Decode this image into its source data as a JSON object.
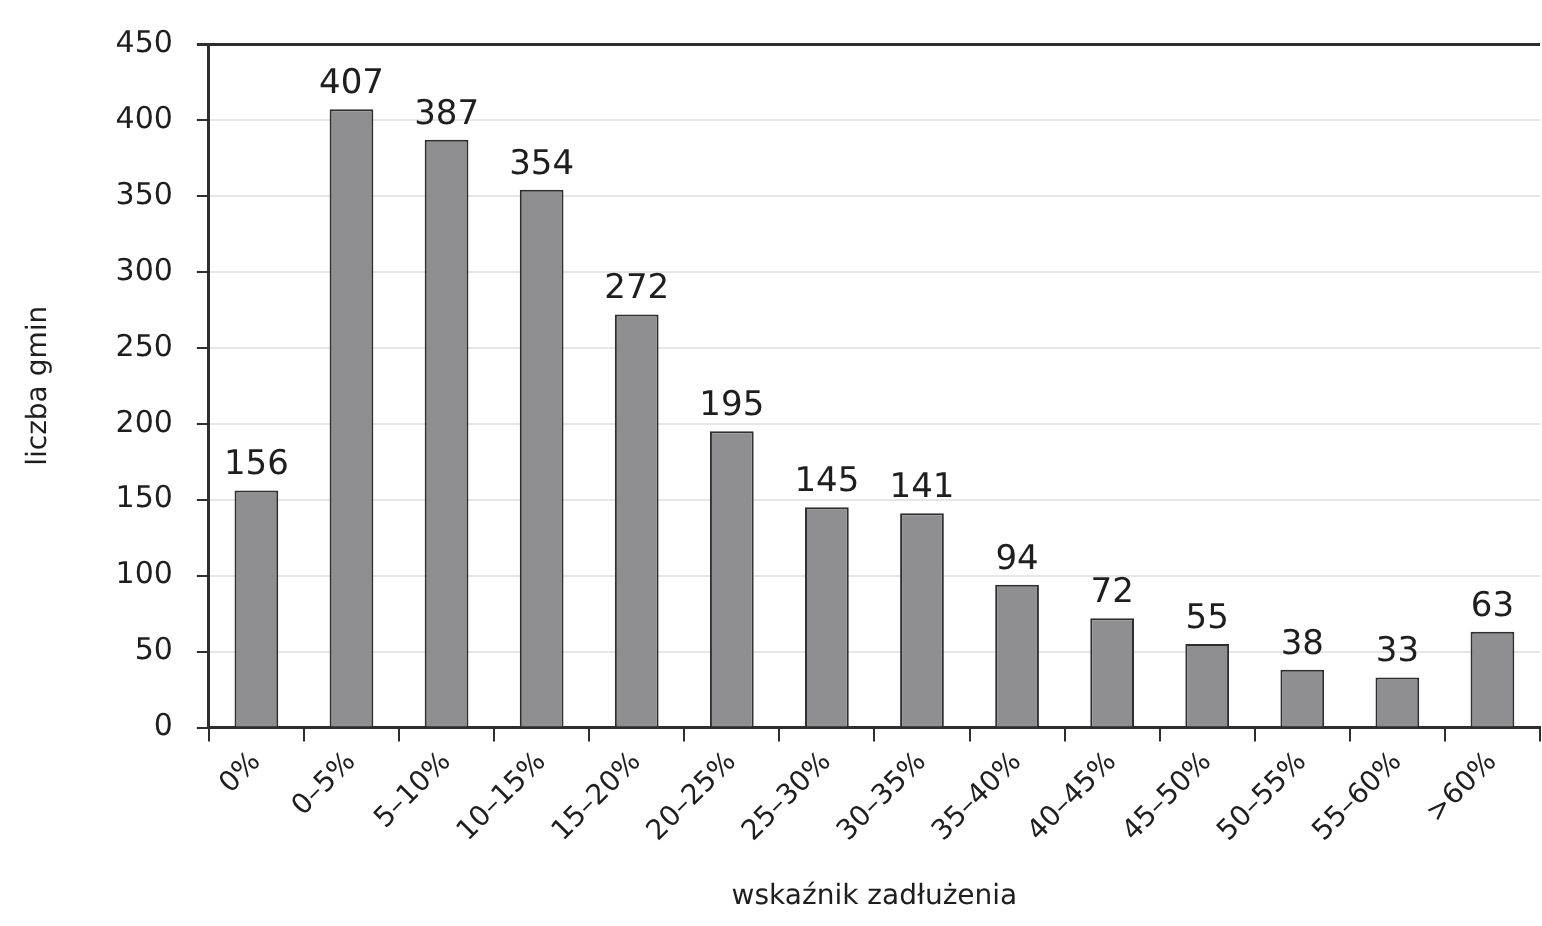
{
  "chart_data": {
    "type": "bar",
    "xlabel": "wskaźnik zadłużenia",
    "ylabel": "liczba gmin",
    "categories": [
      "0%",
      "0–5%",
      "5–10%",
      "10–15%",
      "15–20%",
      "20–25%",
      "25–30%",
      "30–35%",
      "35–40%",
      "40–45%",
      "45–50%",
      "50–55%",
      "55–60%",
      ">60%"
    ],
    "values": [
      156,
      407,
      387,
      354,
      272,
      195,
      145,
      141,
      94,
      72,
      55,
      38,
      33,
      63
    ],
    "color": "#8f8f91",
    "ylim": [
      0,
      450
    ],
    "yticks": [
      0,
      50,
      100,
      150,
      200,
      250,
      300,
      350,
      400,
      450
    ],
    "grid": "y",
    "data_labels": true
  }
}
